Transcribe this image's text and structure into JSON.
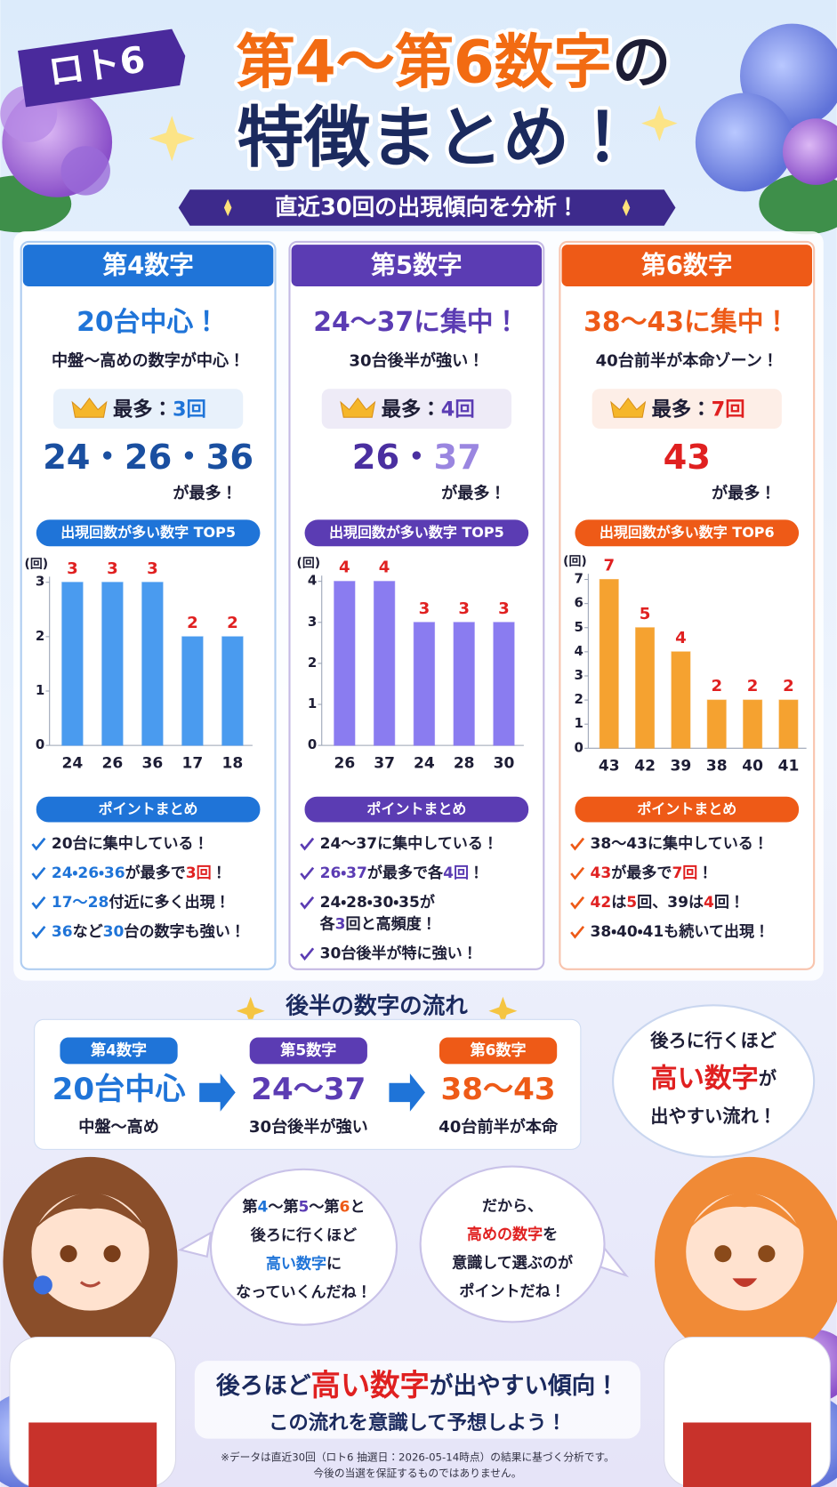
{
  "header": {
    "badge": "ロト6",
    "title_line1": [
      {
        "text": "第4〜第6数字",
        "color": "#f26b12"
      },
      {
        "text": "の",
        "color": "#1d1d35"
      }
    ],
    "title_line2": "特徴まとめ！",
    "subtitle": "直近30回の出現傾向を分析！"
  },
  "panels": [
    {
      "color": "#1f74d8",
      "header": "第4数字",
      "headline": "20台中心！",
      "subline": "中盤〜高めの数字が中心！",
      "max_label": [
        {
          "text": "最多："
        },
        {
          "text": "3回",
          "color": "#1f74d8"
        }
      ],
      "top_numbers": [
        {
          "text": "24・26・36",
          "color": "#1a4fa0"
        }
      ],
      "top_suffix": "が最多！",
      "summary_title": "ポイントまとめ",
      "bullets": [
        [
          [
            {
              "text": "20台に集中している！"
            }
          ]
        ],
        [
          [
            {
              "text": "24・26・36",
              "color": "#1f74d8"
            },
            {
              "text": "が最多で"
            },
            {
              "text": "3回",
              "color": "#e02020"
            },
            {
              "text": "！"
            }
          ]
        ],
        [
          [
            {
              "text": "17〜28",
              "color": "#1f74d8"
            },
            {
              "text": "付近に多く出現！"
            }
          ]
        ],
        [
          [
            {
              "text": "36",
              "color": "#1f74d8"
            },
            {
              "text": "など"
            },
            {
              "text": "30",
              "color": "#1f74d8"
            },
            {
              "text": "台の数字も強い！"
            }
          ]
        ]
      ]
    },
    {
      "color": "#5b3cb3",
      "header": "第5数字",
      "headline": "24〜37に集中！",
      "subline": "30台後半が強い！",
      "max_label": [
        {
          "text": "最多："
        },
        {
          "text": "4回",
          "color": "#5b3cb3"
        }
      ],
      "top_numbers": [
        {
          "text": "26・",
          "color": "#4a2fa0"
        },
        {
          "text": "37",
          "color": "#9a86e0"
        }
      ],
      "top_suffix": "が最多！",
      "summary_title": "ポイントまとめ",
      "bullets": [
        [
          [
            {
              "text": "24〜37に集中している！"
            }
          ]
        ],
        [
          [
            {
              "text": "26・37",
              "color": "#5b3cb3"
            },
            {
              "text": "が最多で各"
            },
            {
              "text": "4回",
              "color": "#5b3cb3"
            },
            {
              "text": "！"
            }
          ]
        ],
        [
          [
            {
              "text": "24・28・30・35が"
            }
          ],
          [
            {
              "text": "各"
            },
            {
              "text": "3",
              "color": "#5b3cb3"
            },
            {
              "text": "回と高頻度！"
            }
          ]
        ],
        [
          [
            {
              "text": "30台後半が特に強い！"
            }
          ]
        ]
      ]
    },
    {
      "color": "#ee5a17",
      "header": "第6数字",
      "headline": "38〜43に集中！",
      "subline": "40台前半が本命ゾーン！",
      "max_label": [
        {
          "text": "最多："
        },
        {
          "text": "7回",
          "color": "#e02020"
        }
      ],
      "top_numbers": [
        {
          "text": "43",
          "color": "#e02020"
        }
      ],
      "top_suffix": "が最多！",
      "summary_title": "ポイントまとめ",
      "bullets": [
        [
          [
            {
              "text": "38〜43に集中している！"
            }
          ]
        ],
        [
          [
            {
              "text": "43",
              "color": "#e02020"
            },
            {
              "text": "が最多で"
            },
            {
              "text": "7回",
              "color": "#e02020"
            },
            {
              "text": "！"
            }
          ]
        ],
        [
          [
            {
              "text": "42",
              "color": "#e02020"
            },
            {
              "text": "は"
            },
            {
              "text": "5",
              "color": "#e02020"
            },
            {
              "text": "回、39は"
            },
            {
              "text": "4",
              "color": "#e02020"
            },
            {
              "text": "回！"
            }
          ]
        ],
        [
          [
            {
              "text": "38・40・41も続いて出現！"
            }
          ]
        ]
      ]
    }
  ],
  "chart_data": [
    {
      "type": "bar",
      "title": "出現回数が多い数字 TOP5",
      "y_label": "(回)",
      "categories": [
        "24",
        "26",
        "36",
        "17",
        "18"
      ],
      "values": [
        3,
        3,
        3,
        2,
        2
      ],
      "color": "#4a9bef",
      "value_label_color": "#e02020",
      "ylim": [
        0,
        3
      ],
      "yticks": [
        0,
        1,
        2,
        3
      ],
      "grid": false
    },
    {
      "type": "bar",
      "title": "出現回数が多い数字 TOP5",
      "y_label": "(回)",
      "categories": [
        "26",
        "37",
        "24",
        "28",
        "30"
      ],
      "values": [
        4,
        4,
        3,
        3,
        3
      ],
      "color": "#8a7cf0",
      "value_label_color": "#e02020",
      "ylim": [
        0,
        4
      ],
      "yticks": [
        0,
        1,
        2,
        3,
        4
      ],
      "grid": false
    },
    {
      "type": "bar",
      "title": "出現回数が多い数字 TOP6",
      "y_label": "(回)",
      "categories": [
        "43",
        "42",
        "39",
        "38",
        "40",
        "41"
      ],
      "values": [
        7,
        5,
        4,
        2,
        2,
        2
      ],
      "color": "#f5a230",
      "value_label_color": "#e02020",
      "ylim": [
        0,
        7
      ],
      "yticks": [
        0,
        1,
        2,
        3,
        4,
        5,
        6,
        7
      ],
      "grid": false
    }
  ],
  "flow": {
    "title": "後半の数字の流れ",
    "steps": [
      {
        "label": "第4数字",
        "main": "20台中心",
        "sub": "中盤〜高め",
        "color": "#1f74d8"
      },
      {
        "label": "第5数字",
        "main": "24〜37",
        "sub": "30台後半が強い",
        "color": "#5b3cb3"
      },
      {
        "label": "第6数字",
        "main": "38〜43",
        "sub": "40台前半が本命",
        "color": "#ee5a17"
      }
    ],
    "bubble": [
      [
        {
          "text": "後ろに行くほど"
        }
      ],
      [
        {
          "text": "高い数字",
          "color": "#e02020"
        },
        {
          "text": "が"
        }
      ],
      [
        {
          "text": "出やすい流れ！"
        }
      ]
    ]
  },
  "speech": {
    "left": [
      [
        {
          "text": "第"
        },
        {
          "text": "4",
          "color": "#1f74d8"
        },
        {
          "text": "〜第"
        },
        {
          "text": "5",
          "color": "#5b3cb3"
        },
        {
          "text": "〜第"
        },
        {
          "text": "6",
          "color": "#ee5a17"
        },
        {
          "text": "と"
        }
      ],
      [
        {
          "text": "後ろに行くほど"
        }
      ],
      [
        {
          "text": "高い数字",
          "color": "#1f74d8"
        },
        {
          "text": "に"
        }
      ],
      [
        {
          "text": "なっていくんだね！"
        }
      ]
    ],
    "right": [
      [
        {
          "text": "だから、"
        }
      ],
      [
        {
          "text": "高めの数字",
          "color": "#e02020"
        },
        {
          "text": "を"
        }
      ],
      [
        {
          "text": "意識して選ぶのが"
        }
      ],
      [
        {
          "text": "ポイントだね！"
        }
      ]
    ]
  },
  "closing": {
    "line1": [
      {
        "text": "後ろほど"
      },
      {
        "text": "高い数字",
        "color": "#e02020"
      },
      {
        "text": "が出やすい傾向！"
      }
    ],
    "line2": "この流れを意識して予想しよう！",
    "footnote": [
      "※データは直近30回（ロト6 抽選日：2026-05-14時点）の結果に基づく分析です。",
      "今後の当選を保証するものではありません。"
    ]
  }
}
